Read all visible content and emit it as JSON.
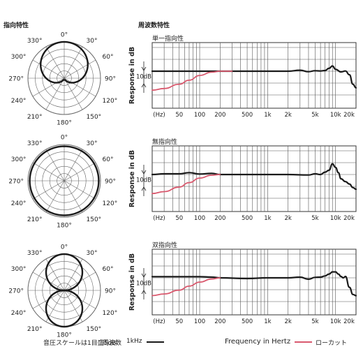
{
  "headers": {
    "polar": "指向特性",
    "freq": "周波数特性"
  },
  "colors": {
    "main": "#1a1a1a",
    "lowcut": "#d9596e",
    "grid": "#555555"
  },
  "polar_labels": [
    "0°",
    "30°",
    "60°",
    "90°",
    "120°",
    "150°",
    "180°",
    "210°",
    "240°",
    "270°",
    "300°",
    "330°"
  ],
  "freq_axis": {
    "ylabel": "Response in dB",
    "ref_label": "10dB",
    "tick_labels": [
      "(Hz)",
      "50",
      "100",
      "200",
      "500",
      "1k",
      "2k",
      "5k",
      "10k",
      "20k"
    ],
    "tick_freqs": [
      20,
      50,
      100,
      200,
      500,
      1000,
      2000,
      5000,
      10000,
      20000
    ],
    "xlim": [
      20,
      20000
    ],
    "scale": "log"
  },
  "footer": {
    "scale_note": "音圧スケールは1目盛5dB",
    "freq_label": "周波数",
    "freq_value": "1kHz",
    "axis_title": "Frequency in Hertz",
    "lowcut_label": "ローカット"
  },
  "chart_data": [
    {
      "type": "polar",
      "pattern": "cardioid",
      "ring_step_db": 5,
      "angles_deg": [
        0,
        30,
        60,
        90,
        120,
        150,
        180,
        210,
        240,
        270,
        300,
        330
      ],
      "series": [
        {
          "values_norm": [
            1.0,
            0.93,
            0.75,
            0.5,
            0.25,
            0.07,
            0.05,
            0.07,
            0.25,
            0.5,
            0.75,
            0.93
          ]
        }
      ]
    },
    {
      "type": "polar",
      "pattern": "omnidirectional",
      "ring_step_db": 5,
      "angles_deg": [
        0,
        30,
        60,
        90,
        120,
        150,
        180,
        210,
        240,
        270,
        300,
        330
      ],
      "series": [
        {
          "values_norm": [
            1,
            1,
            1,
            1,
            1,
            1,
            1,
            1,
            1,
            1,
            1,
            1
          ]
        }
      ]
    },
    {
      "type": "polar",
      "pattern": "bidirectional",
      "ring_step_db": 5,
      "angles_deg": [
        0,
        30,
        60,
        90,
        120,
        150,
        180,
        210,
        240,
        270,
        300,
        330
      ],
      "series": [
        {
          "values_norm": [
            1.0,
            0.87,
            0.5,
            0.05,
            0.5,
            0.87,
            1.0,
            0.87,
            0.5,
            0.05,
            0.5,
            0.87
          ]
        }
      ]
    },
    {
      "type": "line",
      "title": "単一指向性",
      "xlabel": "Frequency in Hertz",
      "ylabel": "Response in dB",
      "series": [
        {
          "name": "1kHz",
          "x": [
            20,
            50,
            100,
            200,
            500,
            1000,
            2000,
            3000,
            4000,
            5000,
            6000,
            7000,
            8000,
            9000,
            10000,
            12000,
            14000,
            16000,
            18000,
            20000
          ],
          "y": [
            0,
            0,
            0,
            0,
            0,
            0,
            0,
            0.4,
            -0.2,
            0.2,
            0.1,
            0.3,
            1.2,
            2.2,
            0.8,
            -0.3,
            0.1,
            -1.5,
            -5.5,
            -7
          ]
        },
        {
          "name": "ローカット",
          "x": [
            20,
            30,
            50,
            70,
            100,
            150,
            200,
            300
          ],
          "y": [
            -8,
            -7.3,
            -5.5,
            -3.8,
            -1.8,
            -0.4,
            0,
            0
          ]
        }
      ]
    },
    {
      "type": "line",
      "title": "無指向性",
      "xlabel": "Frequency in Hertz",
      "ylabel": "Response in dB",
      "series": [
        {
          "name": "1kHz",
          "x": [
            20,
            30,
            50,
            70,
            100,
            150,
            200,
            500,
            1000,
            2000,
            4000,
            5000,
            6000,
            7000,
            8000,
            9000,
            10000,
            11000,
            12000,
            14000,
            16000,
            18000,
            20000
          ],
          "y": [
            0,
            0.3,
            0.3,
            0.8,
            0.2,
            0.5,
            0,
            0,
            0,
            0,
            -0.2,
            0.3,
            0,
            1.0,
            1.8,
            4.5,
            3.0,
            0.8,
            -1.8,
            -3.0,
            -4.0,
            -5.5,
            -6.2
          ]
        },
        {
          "name": "ローカット",
          "x": [
            20,
            30,
            50,
            70,
            100,
            150,
            200
          ],
          "y": [
            -8,
            -7.2,
            -5.3,
            -3.4,
            -1.5,
            -0.3,
            0
          ]
        }
      ]
    },
    {
      "type": "line",
      "title": "双指向性",
      "xlabel": "Frequency in Hertz",
      "ylabel": "Response in dB",
      "series": [
        {
          "name": "1kHz",
          "x": [
            20,
            50,
            100,
            150,
            200,
            500,
            1000,
            2000,
            3000,
            4000,
            5000,
            6000,
            7000,
            8000,
            9000,
            10000,
            11000,
            12000,
            13000,
            14000,
            16000,
            18000,
            20000
          ],
          "y": [
            0.5,
            0.5,
            0.5,
            0.3,
            0,
            -0.3,
            0,
            0,
            0.3,
            -0.6,
            0.2,
            0.3,
            0.8,
            1.6,
            2.5,
            2.5,
            1.6,
            0.6,
            0,
            0.6,
            -4.0,
            -7.0,
            -7.5
          ]
        },
        {
          "name": "ローカット",
          "x": [
            20,
            30,
            50,
            70,
            100,
            150,
            200
          ],
          "y": [
            -7.5,
            -6.8,
            -5.2,
            -3.5,
            -1.8,
            -0.5,
            0
          ]
        }
      ]
    }
  ]
}
